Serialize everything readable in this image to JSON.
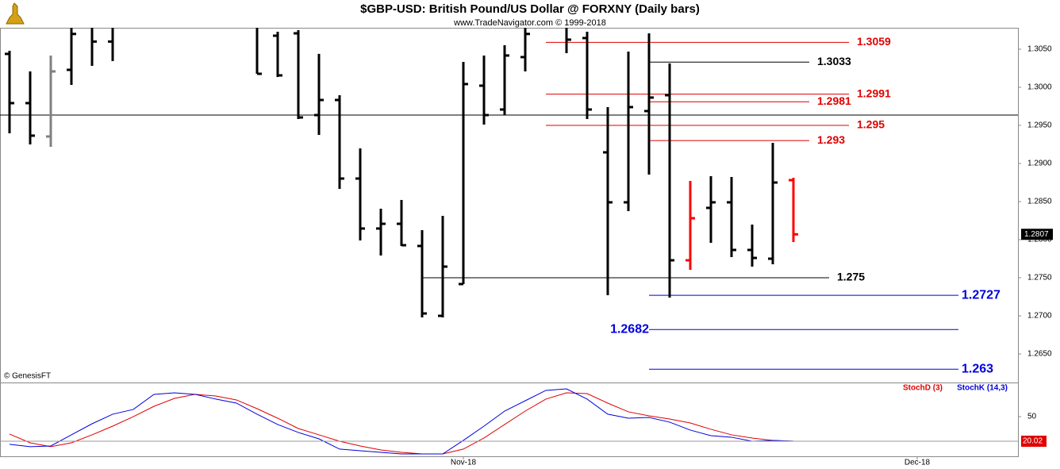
{
  "chart_data": {
    "type": "ohlc",
    "title": "$GBP-USD:  British Pound/US Dollar @ FORXNY  (Daily bars)",
    "subtitle": "www.TradeNavigator.com © 1999-2018",
    "credit": "© GenesisFT",
    "categories": [
      null,
      null,
      null,
      null,
      null,
      null,
      null,
      null,
      null,
      null,
      null,
      null,
      null,
      null,
      null,
      null,
      null,
      null,
      null,
      null,
      null,
      null,
      "Nov-18",
      null,
      null,
      null,
      null,
      null,
      null,
      null,
      null,
      null,
      null,
      null,
      null,
      null,
      null,
      null,
      null,
      null,
      null,
      null,
      null,
      null,
      "Dec-18",
      null,
      null,
      null,
      null
    ],
    "open": [
      1.30438,
      1.29792,
      1.29354,
      1.30229,
      1.3085,
      1.306,
      null,
      null,
      null,
      null,
      null,
      null,
      1.309,
      1.30677,
      1.30708,
      1.29635,
      1.29833,
      1.28802,
      1.28146,
      1.28208,
      1.27917,
      1.27,
      1.27417,
      1.30021,
      1.29708,
      1.30396,
      null,
      1.308,
      1.30646,
      1.29146,
      1.2849,
      1.29688,
      1.29896,
      1.27729,
      1.28417,
      1.2849,
      1.27865,
      1.2775,
      1.28781,
      null,
      null,
      null,
      null,
      null,
      null,
      null,
      null,
      null,
      null
    ],
    "high": [
      1.30479,
      1.30208,
      1.30417,
      1.308,
      1.309,
      1.3095,
      null,
      null,
      null,
      null,
      null,
      null,
      1.31,
      1.30729,
      1.3075,
      1.30438,
      1.29896,
      1.29198,
      1.28406,
      1.28521,
      1.28125,
      1.28313,
      1.30333,
      1.30417,
      1.30552,
      1.3078,
      null,
      1.3085,
      1.30729,
      1.2974,
      1.30469,
      1.30708,
      1.30313,
      1.28771,
      1.28833,
      1.28823,
      1.28198,
      1.29271,
      1.28813,
      null,
      null,
      null,
      null,
      null,
      null,
      null,
      null,
      null,
      null
    ],
    "low": [
      1.29396,
      1.2925,
      1.29219,
      1.30031,
      1.30281,
      1.30344,
      null,
      null,
      null,
      null,
      null,
      null,
      1.30177,
      1.30135,
      1.29583,
      1.29375,
      1.28667,
      1.2799,
      1.27792,
      1.27917,
      1.26979,
      1.26979,
      1.27417,
      1.2951,
      1.29635,
      1.30208,
      null,
      1.30448,
      1.29583,
      1.27271,
      1.28375,
      1.28854,
      1.2724,
      1.27604,
      1.27958,
      1.27771,
      1.27646,
      1.27677,
      1.27969,
      null,
      null,
      null,
      null,
      null,
      null,
      null,
      null,
      null,
      null
    ],
    "close": [
      1.29792,
      1.29365,
      1.30208,
      1.307,
      1.306,
      1.308,
      null,
      null,
      null,
      null,
      null,
      null,
      1.30177,
      1.30156,
      1.29604,
      1.29833,
      1.28802,
      1.28146,
      1.28208,
      1.27927,
      1.27031,
      1.27646,
      1.30042,
      1.29635,
      1.30417,
      1.307,
      null,
      1.30625,
      1.29708,
      1.2849,
      1.2974,
      1.29865,
      1.27729,
      1.28281,
      1.2849,
      1.27865,
      1.2776,
      1.2875,
      1.2807,
      null,
      null,
      null,
      null,
      null,
      null,
      null,
      null,
      null,
      null
    ],
    "bar_colors": [
      "#000",
      "#000",
      "#808080",
      "#000",
      "#000",
      "#000",
      null,
      null,
      null,
      null,
      null,
      null,
      "#000",
      "#000",
      "#000",
      "#000",
      "#000",
      "#000",
      "#000",
      "#000",
      "#000",
      "#000",
      "#000",
      "#000",
      "#000",
      "#000",
      null,
      "#000",
      "#000",
      "#000",
      "#000",
      "#000",
      "#000",
      "#ff0000",
      "#000",
      "#000",
      "#000",
      "#000",
      "#ff0000",
      null,
      null,
      null,
      null,
      null,
      null,
      null,
      null,
      null,
      null
    ],
    "ylim": [
      1.26125,
      1.30781
    ],
    "yticks": [
      {
        "value": 1.265,
        "label": "1.2650"
      },
      {
        "value": 1.27,
        "label": "1.2700"
      },
      {
        "value": 1.275,
        "label": "1.2750"
      },
      {
        "value": 1.28,
        "label": "1.2800"
      },
      {
        "value": 1.285,
        "label": "1.2850"
      },
      {
        "value": 1.29,
        "label": "1.2900"
      },
      {
        "value": 1.295,
        "label": "1.2950"
      },
      {
        "value": 1.3,
        "label": "1.3000"
      },
      {
        "value": 1.305,
        "label": "1.3050"
      }
    ],
    "reference_line": 1.29635,
    "levels": [
      {
        "value": 1.3059,
        "color": "#e00000"
      },
      {
        "value": 1.3033,
        "color": "#000000"
      },
      {
        "value": 1.2991,
        "color": "#e00000"
      },
      {
        "value": 1.2981,
        "color": "#e00000"
      },
      {
        "value": 1.295,
        "color": "#e00000"
      },
      {
        "value": 1.293,
        "color": "#e00000"
      },
      {
        "value": 1.275,
        "color": "#000000"
      },
      {
        "value": 1.2727,
        "color": "#0000dd"
      },
      {
        "value": 1.2682,
        "color": "#0000dd"
      },
      {
        "value": 1.263,
        "color": "#0000dd"
      }
    ],
    "stochastic": {
      "type": "line",
      "ylim": [
        1.6,
        90.7
      ],
      "yticks": [
        50
      ],
      "series": [
        {
          "name": "StochD (3)",
          "color": "#e00000",
          "values": [
            28.8,
            18.1,
            13.3,
            18.1,
            27.8,
            38.4,
            50.0,
            62.6,
            72.3,
            77.2,
            75.2,
            70.4,
            59.7,
            48.1,
            35.5,
            27.8,
            20.0,
            14.2,
            9.4,
            6.5,
            4.5,
            4.5,
            10.4,
            23.9,
            40.4,
            56.8,
            71.4,
            79.1,
            78.1,
            66.5,
            55.9,
            51.0,
            47.1,
            42.3,
            34.6,
            27.8,
            23.9,
            21.0,
            20.02,
            null,
            null,
            null,
            null,
            null,
            null,
            null,
            null,
            null,
            null
          ]
        },
        {
          "name": "StochK (14,3)",
          "color": "#0000dd",
          "values": [
            16.2,
            13.3,
            14.2,
            27.8,
            41.3,
            53.0,
            58.8,
            77.2,
            79.1,
            77.2,
            71.4,
            66.5,
            53.0,
            40.4,
            30.7,
            22.9,
            10.4,
            8.4,
            6.5,
            4.5,
            4.5,
            4.5,
            21.0,
            38.4,
            56.8,
            69.4,
            82.0,
            83.9,
            71.4,
            53.0,
            48.1,
            49.1,
            43.3,
            33.6,
            26.8,
            24.9,
            20.0,
            21.0,
            20.1,
            null,
            null,
            null,
            null,
            null,
            null,
            null,
            null,
            null,
            null
          ]
        }
      ]
    }
  }
}
